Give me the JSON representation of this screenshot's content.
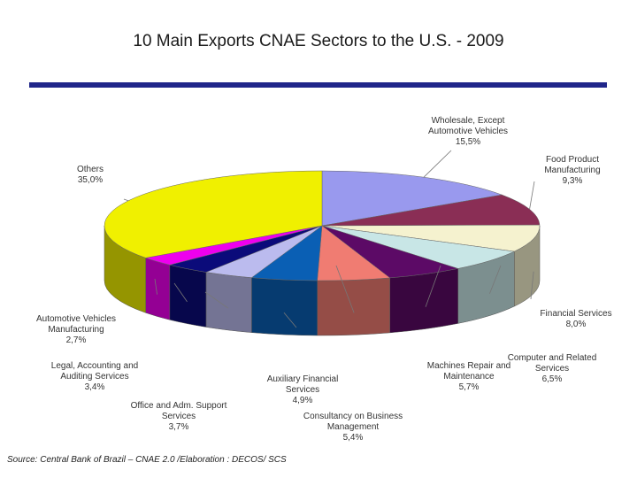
{
  "chart_data": {
    "type": "pie",
    "title": "10 Main Exports CNAE Sectors to the U.S. - 2009",
    "source": "Source: Central Bank of Brazil – CNAE 2.0 /Elaboration : DECOS/ SCS",
    "slices": [
      {
        "name": "wholesale",
        "lines": [
          "Wholesale, Except",
          "Automotive Vehicles"
        ],
        "value_label": "15,5%",
        "value": 15.5,
        "color": "#9999ee"
      },
      {
        "name": "food-product",
        "lines": [
          "Food Product",
          "Manufacturing"
        ],
        "value_label": "9,3%",
        "value": 9.3,
        "color": "#8a2e55"
      },
      {
        "name": "financial-services",
        "lines": [
          "Financial Services"
        ],
        "value_label": "8,0%",
        "value": 8.0,
        "color": "#f5f2cf"
      },
      {
        "name": "computer-related",
        "lines": [
          "Computer and Related",
          "Services"
        ],
        "value_label": "6,5%",
        "value": 6.5,
        "color": "#c8e6e6"
      },
      {
        "name": "machines-repair",
        "lines": [
          "Machines Repair and",
          "Maintenance"
        ],
        "value_label": "5,7%",
        "value": 5.7,
        "color": "#5c0a66"
      },
      {
        "name": "consultancy",
        "lines": [
          "Consultancy on Business",
          "Management"
        ],
        "value_label": "5,4%",
        "value": 5.4,
        "color": "#f07c72"
      },
      {
        "name": "auxiliary-financial",
        "lines": [
          "Auxiliary Financial",
          "Services"
        ],
        "value_label": "4,9%",
        "value": 4.9,
        "color": "#0a5fb4"
      },
      {
        "name": "office-adm",
        "lines": [
          "Office and Adm. Support",
          "Services"
        ],
        "value_label": "3,7%",
        "value": 3.7,
        "color": "#bbbbee"
      },
      {
        "name": "legal-accounting",
        "lines": [
          "Legal, Accounting and",
          "Auditing Services"
        ],
        "value_label": "3,4%",
        "value": 3.4,
        "color": "#0b0b7a"
      },
      {
        "name": "automotive-vehicles",
        "lines": [
          "Automotive Vehicles",
          "Manufacturing"
        ],
        "value_label": "2,7%",
        "value": 2.7,
        "color": "#ee00ee"
      },
      {
        "name": "others",
        "lines": [
          "Others"
        ],
        "value_label": "35,0%",
        "value": 35.0,
        "color": "#f0f000"
      }
    ]
  }
}
